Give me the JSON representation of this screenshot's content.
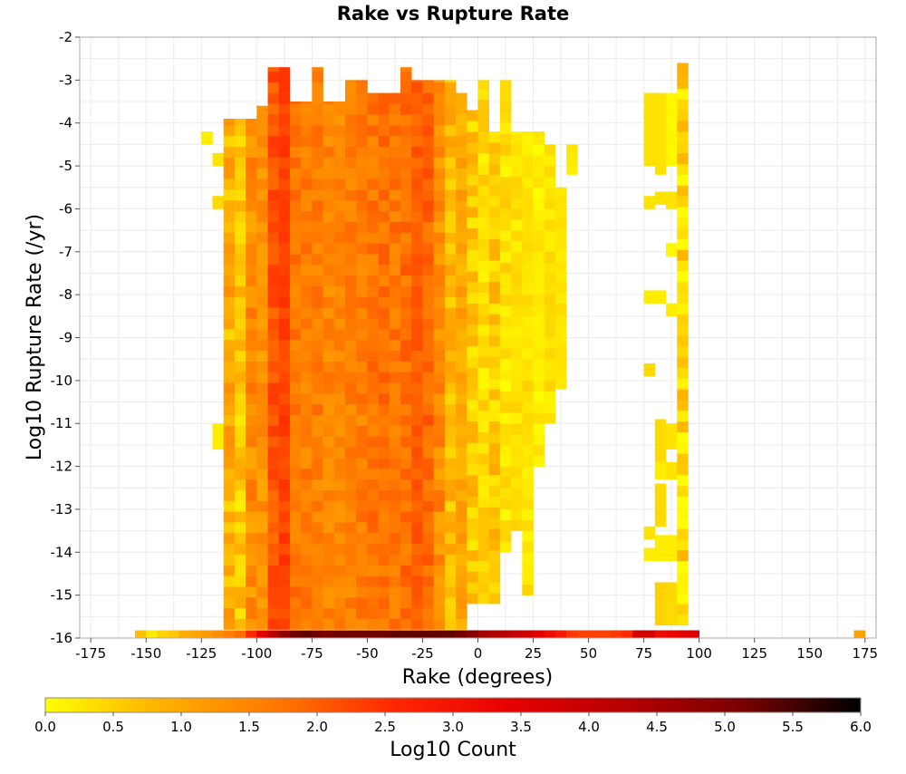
{
  "chart_data": {
    "type": "heatmap",
    "title": "Rake vs Rupture Rate",
    "xlabel": "Rake (degrees)",
    "ylabel": "Log10 Rupture Rate (/yr)",
    "xlim": [
      -180,
      180
    ],
    "ylim": [
      -16,
      -2
    ],
    "bin_width_x": 5,
    "bin_height_y": 0.25,
    "x_ticks": [
      -175,
      -150,
      -125,
      -100,
      -75,
      -50,
      -25,
      0,
      25,
      50,
      75,
      100,
      125,
      150,
      175
    ],
    "y_ticks": [
      -2,
      -3,
      -4,
      -5,
      -6,
      -7,
      -8,
      -9,
      -10,
      -11,
      -12,
      -13,
      -14,
      -15,
      -16
    ],
    "grid": true,
    "colorbar": {
      "label": "Log10 Count",
      "min": 0.0,
      "max": 6.0,
      "ticks": [
        "0.0",
        "0.5",
        "1.0",
        "1.5",
        "2.0",
        "2.5",
        "3.0",
        "3.5",
        "4.0",
        "4.5",
        "5.0",
        "5.5",
        "6.0"
      ],
      "colors": [
        "#ffff00",
        "#ffb000",
        "#ff7800",
        "#ff2800",
        "#e60000",
        "#b40000",
        "#780000",
        "#000000"
      ]
    },
    "bottom_row": {
      "y": -16,
      "cells": [
        {
          "x": -155,
          "v": 0.7
        },
        {
          "x": -150,
          "v": 0.2
        },
        {
          "x": -145,
          "v": 0.5
        },
        {
          "x": -140,
          "v": 0.6
        },
        {
          "x": -135,
          "v": 0.9
        },
        {
          "x": -130,
          "v": 1.0
        },
        {
          "x": -125,
          "v": 1.2
        },
        {
          "x": -120,
          "v": 1.4
        },
        {
          "x": -115,
          "v": 1.6
        },
        {
          "x": -110,
          "v": 1.8
        },
        {
          "x": -105,
          "v": 2.6
        },
        {
          "x": -100,
          "v": 3.5
        },
        {
          "x": -95,
          "v": 4.2
        },
        {
          "x": -90,
          "v": 4.8
        },
        {
          "x": -85,
          "v": 5.2
        },
        {
          "x": -80,
          "v": 5.3
        },
        {
          "x": -75,
          "v": 5.2
        },
        {
          "x": -70,
          "v": 5.1
        },
        {
          "x": -65,
          "v": 5.2
        },
        {
          "x": -60,
          "v": 5.2
        },
        {
          "x": -55,
          "v": 5.2
        },
        {
          "x": -50,
          "v": 5.2
        },
        {
          "x": -45,
          "v": 5.2
        },
        {
          "x": -40,
          "v": 5.3
        },
        {
          "x": -35,
          "v": 5.3
        },
        {
          "x": -30,
          "v": 5.3
        },
        {
          "x": -25,
          "v": 5.3
        },
        {
          "x": -20,
          "v": 5.3
        },
        {
          "x": -15,
          "v": 5.3
        },
        {
          "x": -10,
          "v": 5.2
        },
        {
          "x": -5,
          "v": 4.9
        },
        {
          "x": 0,
          "v": 4.5
        },
        {
          "x": 5,
          "v": 4.3
        },
        {
          "x": 10,
          "v": 4.2
        },
        {
          "x": 15,
          "v": 4.0
        },
        {
          "x": 20,
          "v": 3.8
        },
        {
          "x": 25,
          "v": 3.5
        },
        {
          "x": 30,
          "v": 3.2
        },
        {
          "x": 35,
          "v": 2.9
        },
        {
          "x": 40,
          "v": 2.4
        },
        {
          "x": 45,
          "v": 2.3
        },
        {
          "x": 50,
          "v": 2.3
        },
        {
          "x": 55,
          "v": 2.3
        },
        {
          "x": 60,
          "v": 2.4
        },
        {
          "x": 65,
          "v": 2.6
        },
        {
          "x": 70,
          "v": 3.8
        },
        {
          "x": 75,
          "v": 3.8
        },
        {
          "x": 80,
          "v": 3.2
        },
        {
          "x": 85,
          "v": 3.3
        },
        {
          "x": 90,
          "v": 3.5
        },
        {
          "x": 95,
          "v": 3.6
        },
        {
          "x": 170,
          "v": 1.1
        }
      ]
    },
    "columns": [
      {
        "x": -150,
        "cells": []
      },
      {
        "x": -125,
        "cells": [
          {
            "y_min": -4.5,
            "y_max": -4.2,
            "v": 0.2
          }
        ]
      },
      {
        "x": -120,
        "cells": [
          {
            "y_min": -5.0,
            "y_max": -4.7,
            "v": 0.3
          },
          {
            "y_min": -6.0,
            "y_max": -5.7,
            "v": 0.4
          },
          {
            "y_min": -11.6,
            "y_max": -11.0,
            "v": 0.2
          }
        ]
      },
      {
        "x": -115,
        "y_min": -15.8,
        "y_max": -3.9,
        "v_base": 0.9,
        "v_var": 0.5
      },
      {
        "x": -110,
        "y_min": -15.8,
        "y_max": -3.9,
        "v_base": 0.6,
        "v_var": 0.4
      },
      {
        "x": -105,
        "y_min": -15.8,
        "y_max": -3.9,
        "v_base": 1.4,
        "v_var": 0.4
      },
      {
        "x": -100,
        "y_min": -15.8,
        "y_max": -3.6,
        "v_base": 1.3,
        "v_var": 0.3
      },
      {
        "x": -95,
        "y_min": -15.8,
        "y_max": -2.7,
        "v_base": 2.1,
        "v_var": 0.3
      },
      {
        "x": -90,
        "y_min": -15.8,
        "y_max": -2.7,
        "v_base": 2.3,
        "v_var": 0.2
      },
      {
        "x": -85,
        "y_min": -15.8,
        "y_max": -3.5,
        "v_base": 1.7,
        "v_var": 0.3
      },
      {
        "x": -80,
        "y_min": -15.8,
        "y_max": -3.5,
        "v_base": 1.6,
        "v_var": 0.3
      },
      {
        "x": -75,
        "y_min": -15.8,
        "y_max": -2.7,
        "v_base": 1.6,
        "v_var": 0.3
      },
      {
        "x": -70,
        "y_min": -15.8,
        "y_max": -3.5,
        "v_base": 1.5,
        "v_var": 0.3
      },
      {
        "x": -65,
        "y_min": -15.8,
        "y_max": -3.5,
        "v_base": 1.5,
        "v_var": 0.3
      },
      {
        "x": -60,
        "y_min": -15.8,
        "y_max": -3.0,
        "v_base": 1.6,
        "v_var": 0.3
      },
      {
        "x": -55,
        "y_min": -15.8,
        "y_max": -3.0,
        "v_base": 1.6,
        "v_var": 0.3
      },
      {
        "x": -50,
        "y_min": -15.8,
        "y_max": -3.3,
        "v_base": 1.7,
        "v_var": 0.3
      },
      {
        "x": -45,
        "y_min": -15.8,
        "y_max": -3.3,
        "v_base": 1.8,
        "v_var": 0.3
      },
      {
        "x": -40,
        "y_min": -15.8,
        "y_max": -3.3,
        "v_base": 1.7,
        "v_var": 0.3
      },
      {
        "x": -35,
        "y_min": -15.8,
        "y_max": -2.7,
        "v_base": 1.8,
        "v_var": 0.3
      },
      {
        "x": -30,
        "y_min": -15.8,
        "y_max": -3.0,
        "v_base": 2.0,
        "v_var": 0.2
      },
      {
        "x": -25,
        "y_min": -15.8,
        "y_max": -3.0,
        "v_base": 1.9,
        "v_var": 0.3
      },
      {
        "x": -20,
        "y_min": -15.8,
        "y_max": -3.0,
        "v_base": 1.4,
        "v_var": 0.4
      },
      {
        "x": -15,
        "y_min": -15.8,
        "y_max": -3.0,
        "v_base": 0.8,
        "v_var": 0.4
      },
      {
        "x": -10,
        "y_min": -15.8,
        "y_max": -3.3,
        "v_base": 1.0,
        "v_var": 0.3
      },
      {
        "x": -5,
        "y_min": -15.2,
        "y_max": -3.7,
        "v_base": 0.6,
        "v_var": 0.4
      },
      {
        "x": 0,
        "y_min": -15.2,
        "y_max": -3.0,
        "v_base": 0.4,
        "v_var": 0.3
      },
      {
        "x": 5,
        "y_min": -15.2,
        "y_max": -4.2,
        "v_base": 0.6,
        "v_var": 0.4
      },
      {
        "x": 10,
        "y_min": -14.0,
        "y_max": -3.0,
        "v_base": 0.3,
        "v_var": 0.3
      },
      {
        "x": 15,
        "y_min": -13.5,
        "y_max": -4.2,
        "v_base": 0.3,
        "v_var": 0.2
      },
      {
        "x": 20,
        "y_min": -15.0,
        "y_max": -4.2,
        "v_base": 0.3,
        "v_var": 0.2
      },
      {
        "x": 25,
        "y_min": -12.0,
        "y_max": -4.2,
        "v_base": 0.2,
        "v_var": 0.2
      },
      {
        "x": 30,
        "y_min": -11.0,
        "y_max": -4.5,
        "v_base": 0.3,
        "v_var": 0.2
      },
      {
        "x": 35,
        "y_min": -10.2,
        "y_max": -5.5,
        "v_base": 0.3,
        "v_var": 0.1
      },
      {
        "x": 40,
        "y_min": -5.2,
        "y_max": -4.5,
        "v_base": 0.2,
        "v_var": 0.1
      },
      {
        "x": 75,
        "cells": [
          {
            "y_min": -5.0,
            "y_max": -3.3,
            "v": 0.3
          },
          {
            "y_min": -6.0,
            "y_max": -5.7,
            "v": 0.3
          },
          {
            "y_min": -8.2,
            "y_max": -7.9,
            "v": 0.2
          },
          {
            "y_min": -9.9,
            "y_max": -9.6,
            "v": 0.4
          },
          {
            "y_min": -13.7,
            "y_max": -13.4,
            "v": 0.3
          },
          {
            "y_min": -14.2,
            "y_max": -13.9,
            "v": 0.2
          }
        ]
      },
      {
        "x": 80,
        "cells": [
          {
            "y_min": -5.2,
            "y_max": -3.3,
            "v": 0.3
          },
          {
            "y_min": -5.9,
            "y_max": -5.6,
            "v": 0.3
          },
          {
            "y_min": -8.2,
            "y_max": -7.9,
            "v": 0.2
          },
          {
            "y_min": -11.9,
            "y_max": -10.9,
            "v": 0.4
          },
          {
            "y_min": -12.3,
            "y_max": -11.9,
            "v": 0.2
          },
          {
            "y_min": -13.4,
            "y_max": -12.4,
            "v": 0.4
          },
          {
            "y_min": -14.2,
            "y_max": -13.6,
            "v": 0.2
          },
          {
            "y_min": -15.7,
            "y_max": -14.7,
            "v": 0.5
          }
        ]
      },
      {
        "x": 85,
        "cells": [
          {
            "y_min": -5.0,
            "y_max": -3.3,
            "v": 0.1
          },
          {
            "y_min": -6.0,
            "y_max": -5.6,
            "v": 0.3
          },
          {
            "y_min": -7.1,
            "y_max": -6.8,
            "v": 0.1
          },
          {
            "y_min": -8.5,
            "y_max": -8.2,
            "v": 0.2
          },
          {
            "y_min": -11.6,
            "y_max": -11.0,
            "v": 0.3
          },
          {
            "y_min": -12.3,
            "y_max": -11.9,
            "v": 0.3
          },
          {
            "y_min": -14.2,
            "y_max": -13.6,
            "v": 0.2
          },
          {
            "y_min": -15.7,
            "y_max": -14.7,
            "v": 0.4
          }
        ]
      },
      {
        "x": 90,
        "y_min": -15.7,
        "y_max": -2.6,
        "v_base": 0.4,
        "v_var": 0.5
      }
    ]
  }
}
